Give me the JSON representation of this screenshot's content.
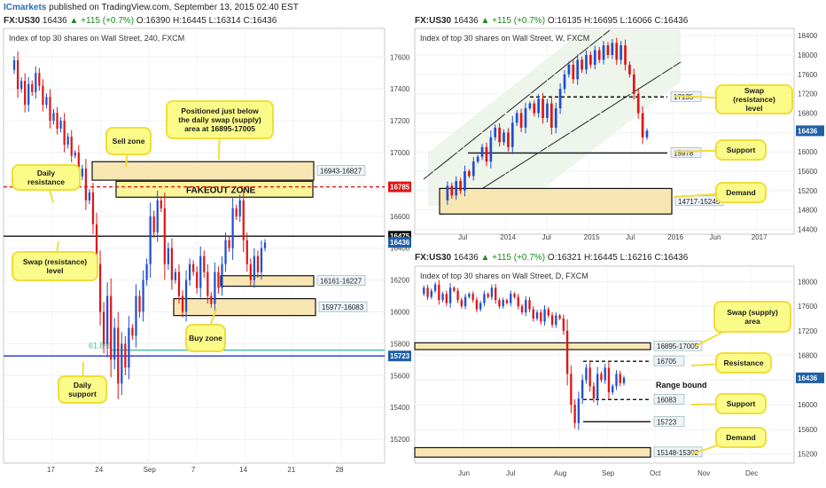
{
  "header": {
    "brand": "ICmarkets",
    "published": "published on TradingView.com, September 13, 2015 02:40 EST"
  },
  "colors": {
    "bull": "#1f4fd1",
    "bear": "#e01515",
    "zone_fill": "#f9e7b3",
    "callout_fill": "#fbfb8a",
    "callout_stroke": "#f0dd3a",
    "axis_tag_red": "#e01515",
    "axis_tag_blue": "#1f5fa8",
    "daily_support_line": "#1f2fd0",
    "fib_line": "#3fbf9f"
  },
  "chart_data": [
    {
      "id": "h4",
      "type": "candlestick",
      "title": "Index of top 30 shares on Wall Street, 240, FXCM",
      "symbol_line": {
        "symbol": "FX:US30",
        "last": "16436",
        "change": "▲ +115 (+0.7%)",
        "o": "O:16390",
        "h": "H:16445",
        "l": "L:16314",
        "c": "C:16436"
      },
      "ylim": [
        15050,
        17780
      ],
      "y_ticks": [
        15200,
        15400,
        15600,
        15800,
        16000,
        16200,
        16400,
        16600,
        16800,
        17000,
        17200,
        17400,
        17600
      ],
      "x_ticks": [
        "17",
        "24",
        "Sep",
        "7",
        "14",
        "21",
        "28"
      ],
      "price_path": [
        17520,
        17580,
        17400,
        17450,
        17300,
        17430,
        17380,
        17500,
        17420,
        17300,
        17350,
        17200,
        17250,
        17150,
        17200,
        17050,
        17100,
        16980,
        17000,
        16850,
        16900,
        16700,
        16750,
        16550,
        16300,
        16000,
        15800,
        16100,
        15700,
        15900,
        15550,
        15800,
        15650,
        15900,
        15850,
        16100,
        16000,
        16200,
        16300,
        16600,
        16500,
        16700,
        16650,
        16300,
        16400,
        16200,
        16250,
        16100,
        16000,
        16200,
        16300,
        16250,
        16150,
        16350,
        16250,
        16100,
        16050,
        16250,
        16150,
        16300,
        16450,
        16400,
        16650,
        16600,
        16700,
        16450,
        16300,
        16200,
        16350,
        16250,
        16400,
        16436
      ],
      "zones": [
        {
          "label": "16943-16827",
          "from": 16827,
          "to": 16943
        },
        {
          "label": "16161-16227",
          "from": 16161,
          "to": 16227
        },
        {
          "label": "15977-16083",
          "from": 15977,
          "to": 16083
        }
      ],
      "fakeout_zone": {
        "label": "FAKEOUT ZONE",
        "from": 16720,
        "to": 16820
      },
      "levels": [
        {
          "value": 16785,
          "label": "16785",
          "style": "dashed",
          "color": "#e01515"
        },
        {
          "value": 16475,
          "label": "16475",
          "style": "solid",
          "color": "#111111"
        },
        {
          "value": 15723,
          "label": "15723",
          "style": "solid",
          "color": "#1f2fd0"
        },
        {
          "value": 15760,
          "label": "61.8%",
          "style": "solid",
          "color": "#3fbf9f"
        }
      ],
      "last_price_tag": "16436",
      "annotations": [
        "Positioned just below the daily swap (supply) area at 16895-17005",
        "Sell zone",
        "Daily resistance",
        "Swap (resistance) level",
        "Buy zone",
        "Daily support"
      ]
    },
    {
      "id": "weekly",
      "type": "candlestick",
      "title": "Index of top 30 shares on Wall Street, W, FXCM",
      "symbol_line": {
        "symbol": "FX:US30",
        "last": "16436",
        "change": "▲ +115 (+0.7%)",
        "o": "O:16135",
        "h": "H:16695",
        "l": "L:16066",
        "c": "C:16436"
      },
      "ylim": [
        14300,
        18550
      ],
      "y_ticks": [
        14400,
        14800,
        15200,
        15600,
        16000,
        16400,
        16800,
        17200,
        17600,
        18000,
        18400
      ],
      "x_ticks": [
        "Jul",
        "2014",
        "Jul",
        "2015",
        "Jul",
        "2016",
        "Jun",
        "2017"
      ],
      "price_path": [
        15000,
        15300,
        15100,
        15400,
        15200,
        15600,
        15500,
        15800,
        15900,
        16100,
        15800,
        16300,
        16500,
        16200,
        16400,
        16100,
        16600,
        16800,
        16500,
        16900,
        17000,
        16800,
        17100,
        16700,
        17000,
        16500,
        16900,
        17300,
        17600,
        17800,
        17500,
        17900,
        17700,
        18000,
        17800,
        18100,
        17900,
        18200,
        18000,
        18250,
        17900,
        18200,
        17800,
        17600,
        17200,
        16800,
        16300,
        16436
      ],
      "zones": [
        {
          "label": "14717-15245",
          "from": 14717,
          "to": 15245
        }
      ],
      "levels": [
        {
          "value": 17135,
          "label": "17135",
          "style": "dashed"
        },
        {
          "value": 15978,
          "label": "15978",
          "style": "solid"
        }
      ],
      "last_price_tag": "16436",
      "annotations": [
        "Swap (resistance) level",
        "Support",
        "Demand"
      ]
    },
    {
      "id": "daily",
      "type": "candlestick",
      "title": "Index of top 30 shares on Wall Street, D, FXCM",
      "symbol_line": {
        "symbol": "FX:US30",
        "last": "16436",
        "change": "▲ +115 (+0.7%)",
        "o": "O:16321",
        "h": "H:16445",
        "l": "L:16216",
        "c": "C:16436"
      },
      "ylim": [
        15050,
        18250
      ],
      "y_ticks": [
        15200,
        15600,
        16000,
        16400,
        16800,
        17200,
        17600,
        18000
      ],
      "x_ticks": [
        "Jun",
        "Jul",
        "Aug",
        "Sep",
        "Oct",
        "Nov",
        "Dec"
      ],
      "price_path": [
        17800,
        17900,
        17750,
        17850,
        17950,
        17700,
        17800,
        17650,
        17900,
        17850,
        17700,
        17600,
        17750,
        17800,
        17700,
        17550,
        17650,
        17800,
        17750,
        17900,
        17700,
        17600,
        17700,
        17650,
        17800,
        17750,
        17600,
        17500,
        17700,
        17550,
        17400,
        17500,
        17350,
        17550,
        17450,
        17300,
        17450,
        17400,
        17200,
        16500,
        16000,
        15700,
        16100,
        16400,
        16600,
        16300,
        16100,
        16500,
        16400,
        16600,
        16200,
        16300,
        16500,
        16350,
        16436
      ],
      "zones": [
        {
          "label": "16895-17005",
          "from": 16895,
          "to": 17005
        },
        {
          "label": "15148-15302",
          "from": 15148,
          "to": 15302
        }
      ],
      "levels": [
        {
          "value": 16705,
          "label": "16705",
          "style": "dashed"
        },
        {
          "value": 16083,
          "label": "16083",
          "style": "dashed"
        },
        {
          "value": 15723,
          "label": "15723",
          "style": "solid"
        }
      ],
      "last_price_tag": "16436",
      "annotations": [
        "Swap (supply) area",
        "Resistance",
        "Range bound",
        "Support",
        "Demand"
      ]
    }
  ]
}
